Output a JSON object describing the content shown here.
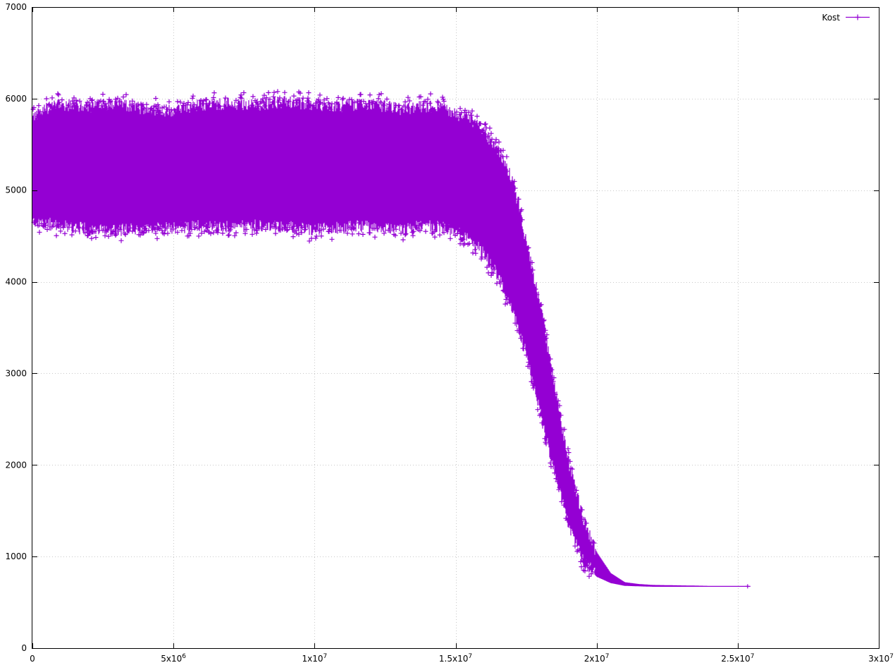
{
  "colors": {
    "series": "#9400d3",
    "grid": "#c8c8c8",
    "axis": "#000000",
    "background": "#ffffff"
  },
  "chart_data": {
    "type": "scatter",
    "title": "",
    "xlabel": "",
    "ylabel": "",
    "xlim": [
      0,
      30000000
    ],
    "ylim": [
      0,
      7000
    ],
    "grid": true,
    "point_marker": "plus",
    "legend_position": "top-right",
    "x_ticks": [
      {
        "value": 0,
        "label": "0"
      },
      {
        "value": 5000000,
        "mantissa": "5x10",
        "exp": "6"
      },
      {
        "value": 10000000,
        "mantissa": "1x10",
        "exp": "7"
      },
      {
        "value": 15000000,
        "mantissa": "1.5x10",
        "exp": "7"
      },
      {
        "value": 20000000,
        "mantissa": "2x10",
        "exp": "7"
      },
      {
        "value": 25000000,
        "mantissa": "2.5x10",
        "exp": "7"
      },
      {
        "value": 30000000,
        "mantissa": "3x10",
        "exp": "7"
      }
    ],
    "y_ticks": [
      {
        "value": 0,
        "label": "0"
      },
      {
        "value": 1000,
        "label": "1000"
      },
      {
        "value": 2000,
        "label": "2000"
      },
      {
        "value": 3000,
        "label": "3000"
      },
      {
        "value": 4000,
        "label": "4000"
      },
      {
        "value": 5000,
        "label": "5000"
      },
      {
        "value": 6000,
        "label": "6000"
      },
      {
        "value": 7000,
        "label": "7000"
      }
    ],
    "series": [
      {
        "name": "Kost",
        "envelope": {
          "x": [
            0,
            500000,
            1000000,
            2000000,
            3000000,
            4000000,
            5000000,
            6000000,
            7000000,
            8000000,
            9000000,
            10000000,
            11000000,
            12000000,
            13000000,
            14000000,
            14500000,
            15000000,
            15500000,
            16000000,
            16500000,
            17000000,
            17500000,
            18000000,
            18500000,
            19000000,
            19500000,
            20000000,
            20500000,
            21000000,
            21500000,
            22000000,
            23000000,
            24000000,
            25000000,
            25400000
          ],
          "y_max": [
            5800,
            5900,
            5950,
            5930,
            5960,
            5900,
            5880,
            5950,
            5960,
            5950,
            5980,
            5950,
            5930,
            5960,
            5900,
            5930,
            5900,
            5850,
            5800,
            5650,
            5450,
            5150,
            4450,
            3750,
            2900,
            2050,
            1450,
            1050,
            820,
            720,
            700,
            690,
            685,
            680,
            680,
            680
          ],
          "y_min": [
            4650,
            4620,
            4600,
            4560,
            4550,
            4580,
            4570,
            4600,
            4580,
            4600,
            4590,
            4560,
            4580,
            4600,
            4560,
            4600,
            4580,
            4540,
            4450,
            4300,
            4050,
            3700,
            3200,
            2550,
            1900,
            1350,
            950,
            780,
            710,
            680,
            675,
            670,
            670,
            670,
            670,
            670
          ]
        }
      }
    ]
  }
}
